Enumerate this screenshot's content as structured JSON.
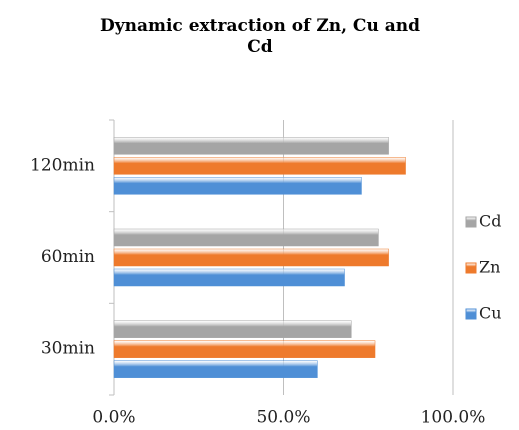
{
  "chart_data": {
    "type": "bar",
    "orientation": "horizontal",
    "title": "Dynamic extraction of Zn, Cu and Cd",
    "categories": [
      "30min",
      "60min",
      "120min"
    ],
    "series": [
      {
        "name": "Cu",
        "color": "#4f8fd6",
        "values": [
          60,
          68,
          73
        ]
      },
      {
        "name": "Zn",
        "color": "#ee7a2c",
        "values": [
          77,
          81,
          86
        ]
      },
      {
        "name": "Cd",
        "color": "#a5a5a5",
        "values": [
          70,
          78,
          81
        ]
      }
    ],
    "xlim": [
      0,
      100
    ],
    "xticks": [
      {
        "value": 0,
        "label": "0.0%"
      },
      {
        "value": 50,
        "label": "50.0%"
      },
      {
        "value": 100,
        "label": "100.0%"
      }
    ],
    "grid": true,
    "legend": "right"
  }
}
